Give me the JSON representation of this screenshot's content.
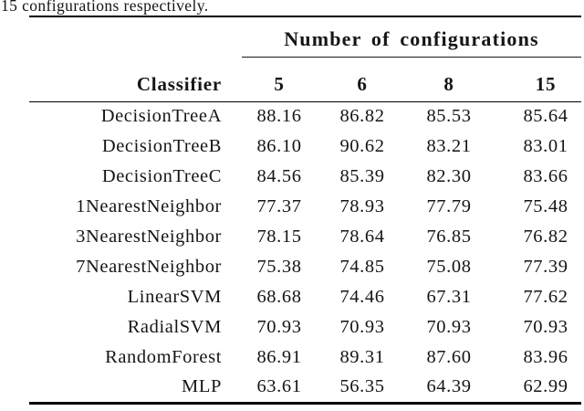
{
  "caption": "15 configurations respectively.",
  "colors": {
    "background": "#ffffff",
    "text": "#151515",
    "rule": "#000000"
  },
  "table": {
    "group_header": "Number of configurations",
    "row_header": "Classifier",
    "columns": [
      "5",
      "6",
      "8",
      "15"
    ],
    "rows": [
      {
        "name": "DecisionTreeA",
        "values": [
          "88.16",
          "86.82",
          "85.53",
          "85.64"
        ]
      },
      {
        "name": "DecisionTreeB",
        "values": [
          "86.10",
          "90.62",
          "83.21",
          "83.01"
        ]
      },
      {
        "name": "DecisionTreeC",
        "values": [
          "84.56",
          "85.39",
          "82.30",
          "83.66"
        ]
      },
      {
        "name": "1NearestNeighbor",
        "values": [
          "77.37",
          "78.93",
          "77.79",
          "75.48"
        ]
      },
      {
        "name": "3NearestNeighbor",
        "values": [
          "78.15",
          "78.64",
          "76.85",
          "76.82"
        ]
      },
      {
        "name": "7NearestNeighbor",
        "values": [
          "75.38",
          "74.85",
          "75.08",
          "77.39"
        ]
      },
      {
        "name": "LinearSVM",
        "values": [
          "68.68",
          "74.46",
          "67.31",
          "77.62"
        ]
      },
      {
        "name": "RadialSVM",
        "values": [
          "70.93",
          "70.93",
          "70.93",
          "70.93"
        ]
      },
      {
        "name": "RandomForest",
        "values": [
          "86.91",
          "89.31",
          "87.60",
          "83.96"
        ]
      },
      {
        "name": "MLP",
        "values": [
          "63.61",
          "56.35",
          "64.39",
          "62.99"
        ]
      }
    ]
  }
}
